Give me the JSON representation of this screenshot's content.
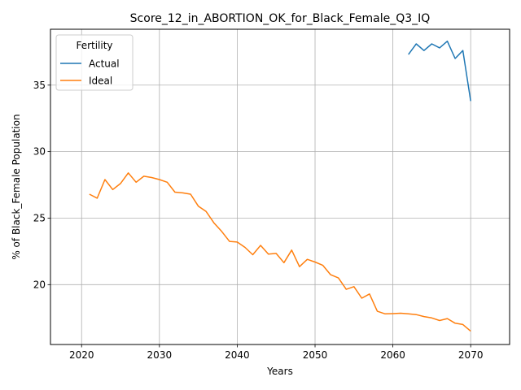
{
  "chart_data": {
    "type": "line",
    "title": "Score_12_in_ABORTION_OK_for_Black_Female_Q3_IQ",
    "xlabel": "Years",
    "ylabel": "% of Black_Female Population",
    "xlim": [
      2016,
      2075
    ],
    "ylim": [
      15.5,
      39.2
    ],
    "xticks": [
      2020,
      2030,
      2040,
      2050,
      2060,
      2070
    ],
    "yticks": [
      20,
      25,
      30,
      35
    ],
    "grid": true,
    "legend": {
      "title": "Fertility",
      "placement": "top-left"
    },
    "series": [
      {
        "name": "Actual",
        "color": "#1f77b4",
        "x": [
          2062,
          2063,
          2064,
          2065,
          2066,
          2067,
          2068,
          2069,
          2070
        ],
        "y": [
          37.3,
          38.1,
          37.6,
          38.1,
          37.8,
          38.3,
          37.0,
          37.6,
          33.8
        ]
      },
      {
        "name": "Ideal",
        "color": "#ff7f0e",
        "x": [
          2021,
          2022,
          2023,
          2024,
          2025,
          2026,
          2027,
          2028,
          2029,
          2030,
          2031,
          2032,
          2033,
          2034,
          2035,
          2036,
          2037,
          2038,
          2039,
          2040,
          2041,
          2042,
          2043,
          2044,
          2045,
          2046,
          2047,
          2048,
          2049,
          2050,
          2051,
          2052,
          2053,
          2054,
          2055,
          2056,
          2057,
          2058,
          2059,
          2060,
          2061,
          2062,
          2063,
          2064,
          2065,
          2066,
          2067,
          2068,
          2069,
          2070
        ],
        "y": [
          26.8,
          26.5,
          27.9,
          27.15,
          27.6,
          28.4,
          27.7,
          28.15,
          28.05,
          27.9,
          27.7,
          26.95,
          26.9,
          26.8,
          25.9,
          25.5,
          24.65,
          24.0,
          23.25,
          23.2,
          22.8,
          22.25,
          22.95,
          22.3,
          22.35,
          21.65,
          22.6,
          21.35,
          21.9,
          21.7,
          21.45,
          20.75,
          20.5,
          19.65,
          19.85,
          18.98,
          19.3,
          18.0,
          17.8,
          17.82,
          17.85,
          17.8,
          17.75,
          17.6,
          17.5,
          17.3,
          17.45,
          17.1,
          17.0,
          16.5
        ]
      }
    ]
  }
}
